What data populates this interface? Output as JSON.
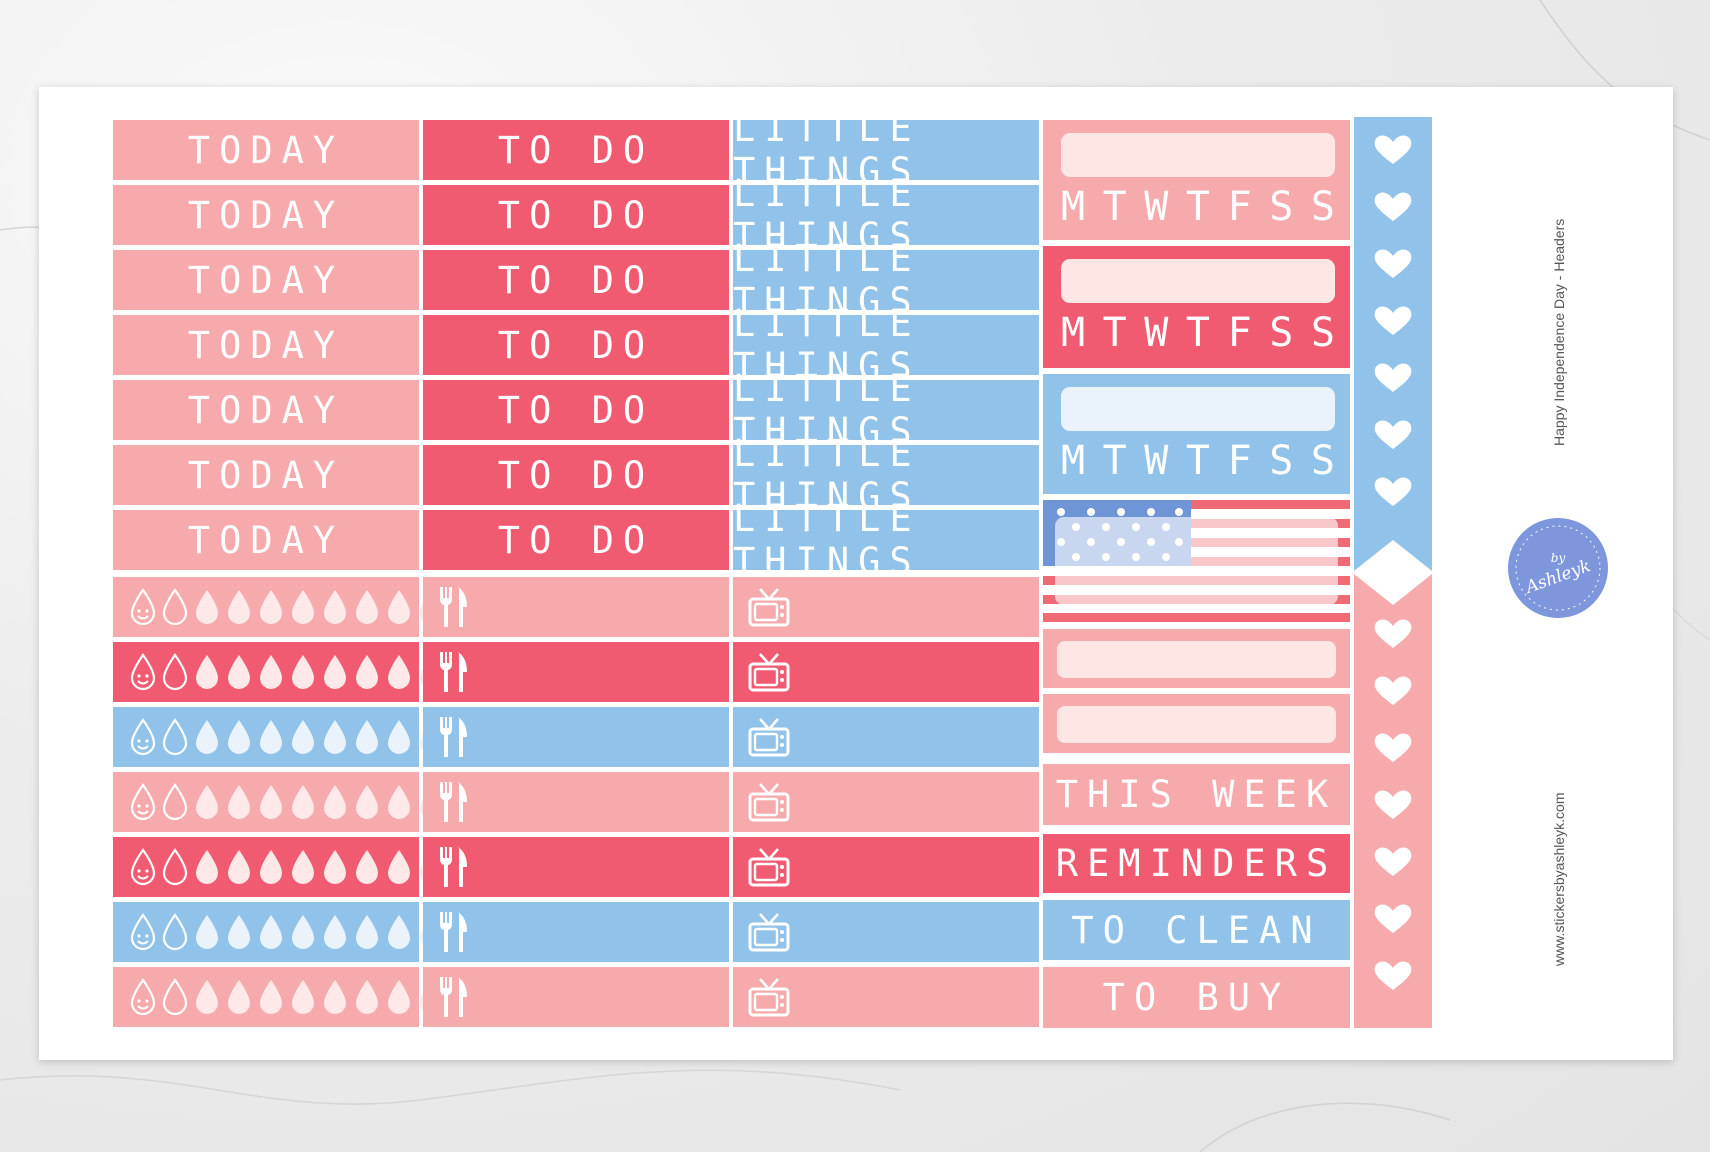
{
  "colors": {
    "light_pink": "#f6aaab",
    "red": "#f15b71",
    "blue": "#90c2ea",
    "flag_blue": "#6e95d6"
  },
  "columns": {
    "today_label": "TODAY",
    "todo_label": "TO DO",
    "little_label": "LITTLE THINGS"
  },
  "headers_rows": 7,
  "icon_rows": [
    "light_pink",
    "red",
    "blue",
    "light_pink",
    "red",
    "blue",
    "light_pink"
  ],
  "week": {
    "days": [
      "M",
      "T",
      "W",
      "T",
      "F",
      "S",
      "S"
    ]
  },
  "labels": {
    "this_week": "THIS WEEK",
    "reminders": "REMINDERS",
    "to_clean": "TO CLEAN",
    "to_buy": "TO BUY"
  },
  "sheet": {
    "title": "Happy Independence Day - Headers",
    "website": "www.stickersbyashleyk.com",
    "logo_text": "by Ashleyk"
  },
  "icons": [
    "water-drop-face-icon",
    "water-drop-icon",
    "fork-knife-icon",
    "tv-icon",
    "heart-icon",
    "us-flag-icon"
  ]
}
